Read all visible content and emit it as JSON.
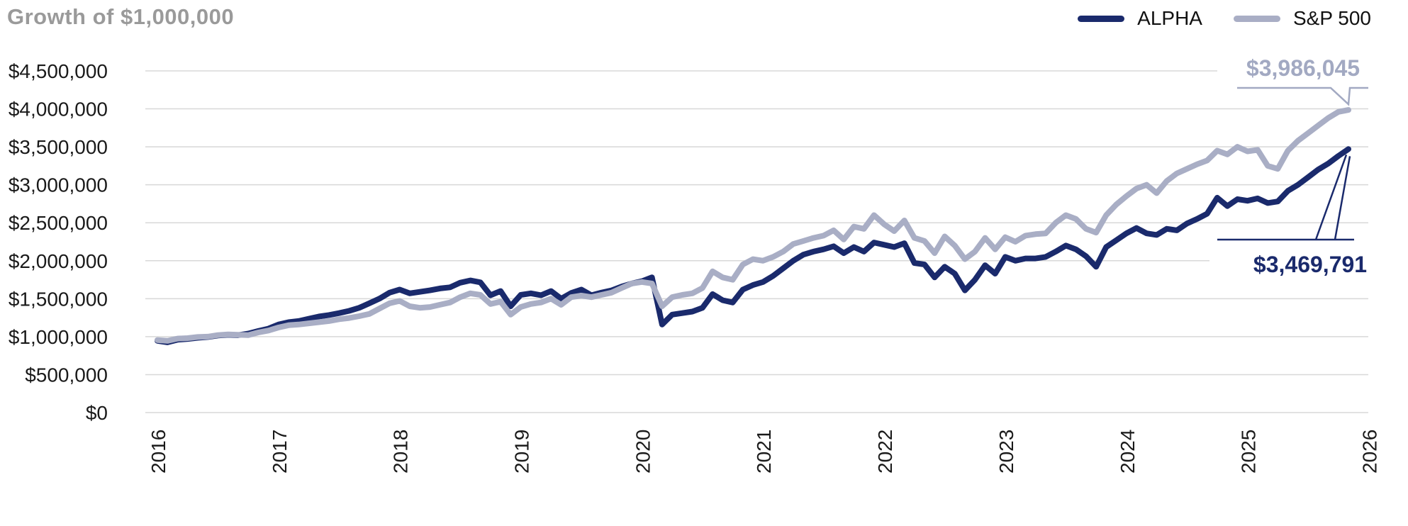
{
  "title": "Growth of $1,000,000",
  "legend": [
    {
      "label": "ALPHA",
      "color": "#1a2a6c"
    },
    {
      "label": "S&P 500",
      "color": "#a9aec5"
    }
  ],
  "colors": {
    "alpha_line": "#1a2a6c",
    "sp500_line": "#a9aec5",
    "title_text": "#9a9a9a",
    "axis_text": "#1a1a1a",
    "gridline": "#d8d8d8",
    "sp500_annotation_text": "#a2a9c2",
    "alpha_annotation_text": "#1a2a6c"
  },
  "annotations": [
    {
      "series": "S&P 500",
      "label": "$3,986,045"
    },
    {
      "series": "ALPHA",
      "label": "$3,469,791"
    }
  ],
  "y_axis": {
    "tick_labels": [
      "$4,500,000",
      "$4,000,000",
      "$3,500,000",
      "$3,000,000",
      "$2,500,000",
      "$2,000,000",
      "$1,500,000",
      "$1,000,000",
      "$500,000",
      "$0"
    ],
    "tick_values": [
      4500000,
      4000000,
      3500000,
      3000000,
      2500000,
      2000000,
      1500000,
      1000000,
      500000,
      0
    ]
  },
  "x_axis": {
    "tick_labels": [
      "2016",
      "2017",
      "2018",
      "2019",
      "2020",
      "2021",
      "2022",
      "2023",
      "2024",
      "2025",
      "2026"
    ]
  },
  "chart_data": {
    "type": "line",
    "title": "Growth of $1,000,000",
    "x_start": "2016-01",
    "x_step_months": 1,
    "ylim": [
      0,
      4500000
    ],
    "grid": "horizontal",
    "legend_position": "top-right",
    "series": [
      {
        "name": "ALPHA",
        "color": "#1a2a6c",
        "end_label": "$3,469,791",
        "end_value": 3469791,
        "values": [
          945000,
          925000,
          960000,
          970000,
          985000,
          995000,
          1015000,
          1025000,
          1020000,
          1040000,
          1075000,
          1105000,
          1160000,
          1190000,
          1205000,
          1235000,
          1265000,
          1285000,
          1310000,
          1340000,
          1380000,
          1440000,
          1500000,
          1580000,
          1620000,
          1570000,
          1590000,
          1610000,
          1635000,
          1650000,
          1710000,
          1740000,
          1715000,
          1545000,
          1600000,
          1400000,
          1550000,
          1570000,
          1545000,
          1600000,
          1500000,
          1575000,
          1620000,
          1545000,
          1580000,
          1610000,
          1660000,
          1700000,
          1730000,
          1780000,
          1160000,
          1290000,
          1310000,
          1330000,
          1380000,
          1560000,
          1480000,
          1450000,
          1620000,
          1680000,
          1720000,
          1800000,
          1900000,
          2000000,
          2080000,
          2120000,
          2150000,
          2190000,
          2100000,
          2180000,
          2120000,
          2240000,
          2210000,
          2180000,
          2230000,
          1970000,
          1950000,
          1780000,
          1920000,
          1830000,
          1610000,
          1750000,
          1940000,
          1830000,
          2050000,
          2000000,
          2030000,
          2030000,
          2050000,
          2120000,
          2200000,
          2150000,
          2060000,
          1920000,
          2180000,
          2270000,
          2360000,
          2430000,
          2360000,
          2340000,
          2420000,
          2400000,
          2490000,
          2550000,
          2620000,
          2830000,
          2720000,
          2810000,
          2790000,
          2820000,
          2760000,
          2780000,
          2920000,
          3000000,
          3100000,
          3200000,
          3280000,
          3380000,
          3469791
        ]
      },
      {
        "name": "S&P 500",
        "color": "#a9aec5",
        "end_label": "$3,986,045",
        "end_value": 3986045,
        "values": [
          955000,
          945000,
          975000,
          980000,
          995000,
          1000000,
          1020000,
          1030000,
          1025000,
          1020000,
          1055000,
          1080000,
          1120000,
          1150000,
          1160000,
          1175000,
          1190000,
          1205000,
          1230000,
          1245000,
          1270000,
          1300000,
          1370000,
          1440000,
          1470000,
          1400000,
          1380000,
          1390000,
          1420000,
          1450000,
          1520000,
          1570000,
          1550000,
          1430000,
          1460000,
          1290000,
          1390000,
          1430000,
          1450000,
          1500000,
          1420000,
          1520000,
          1540000,
          1520000,
          1550000,
          1580000,
          1640000,
          1700000,
          1720000,
          1700000,
          1400000,
          1520000,
          1550000,
          1570000,
          1640000,
          1860000,
          1780000,
          1750000,
          1950000,
          2020000,
          2000000,
          2050000,
          2120000,
          2220000,
          2260000,
          2300000,
          2330000,
          2400000,
          2280000,
          2450000,
          2420000,
          2600000,
          2480000,
          2390000,
          2530000,
          2300000,
          2260000,
          2100000,
          2320000,
          2200000,
          2020000,
          2120000,
          2300000,
          2150000,
          2310000,
          2250000,
          2330000,
          2350000,
          2360000,
          2500000,
          2600000,
          2550000,
          2420000,
          2370000,
          2600000,
          2740000,
          2850000,
          2950000,
          3000000,
          2890000,
          3050000,
          3150000,
          3210000,
          3270000,
          3320000,
          3450000,
          3400000,
          3500000,
          3440000,
          3460000,
          3250000,
          3210000,
          3450000,
          3580000,
          3680000,
          3780000,
          3880000,
          3960000,
          3986045
        ]
      }
    ]
  }
}
